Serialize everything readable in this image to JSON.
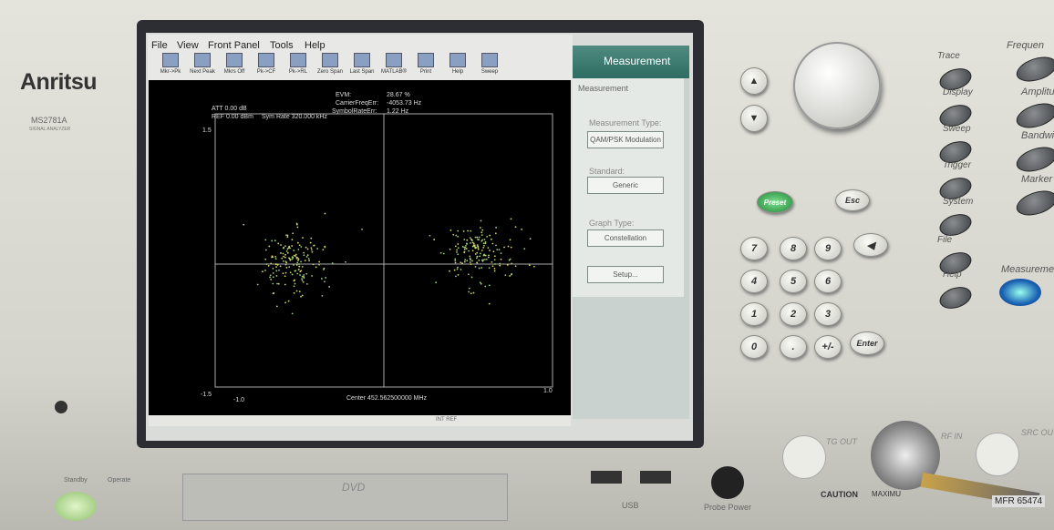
{
  "brand": "Anritsu",
  "model": "MS2781A",
  "model_sub": "SIGNAL ANALYZER",
  "menu": [
    "File",
    "View",
    "Front Panel",
    "Tools",
    "Help"
  ],
  "toolbar": [
    "Mkr->Pk",
    "Next Peak",
    "Mkrs Off",
    "Pk->CF",
    "Pk->RL",
    "Zero Span",
    "Last Span",
    "MATLAB®",
    "Print",
    "Help",
    "Sweep"
  ],
  "screen": {
    "att": "ATT 0.00 dB",
    "ref": "REF 0.00 dBm",
    "sym_rate": "Sym Rate 320.000 kHz",
    "evm_label": "EVM:",
    "evm_value": "28.67 %",
    "cfe_label": "CarrierFreqErr:",
    "cfe_value": "-4053.73 Hz",
    "sre_label": "SymbolRateErr:",
    "sre_value": "1.22 Hz",
    "y_top": "1.5",
    "y_bottom": "-1.5",
    "x_left": "-1.0",
    "x_right": "1.0",
    "center": "Center 452.562500000 MHz",
    "int_ref": "INT REF"
  },
  "panel": {
    "title": "Measurement",
    "section": "Measurement",
    "meas_type_label": "Measurement Type:",
    "meas_type": "QAM/PSK Modulation",
    "standard_label": "Standard:",
    "standard": "Generic",
    "graph_type_label": "Graph Type:",
    "graph_type": "Constellation",
    "setup": "Setup..."
  },
  "keys": [
    "7",
    "8",
    "9",
    "4",
    "5",
    "6",
    "1",
    "2",
    "3",
    "0",
    ".",
    "+/-"
  ],
  "enter": "Enter",
  "preset": "Preset",
  "esc": "Esc",
  "side_keys": [
    "Trace",
    "Display",
    "Sweep",
    "Trigger",
    "System",
    "File",
    "Help"
  ],
  "soft_keys": [
    "Frequen",
    "Amplitu",
    "Bandwi",
    "Marker",
    "Measureme"
  ],
  "bottom": {
    "standby": "Standby",
    "operate": "Operate",
    "dvd": "DVD",
    "usb": "USB",
    "probe_power": "Probe Power",
    "tg_out": "TG OUT",
    "rf_in": "RF IN",
    "src_out": "SRC OU",
    "caution": "CAUTION",
    "maximum": "MAXIMU",
    "cable_label": "MFR 65474"
  }
}
